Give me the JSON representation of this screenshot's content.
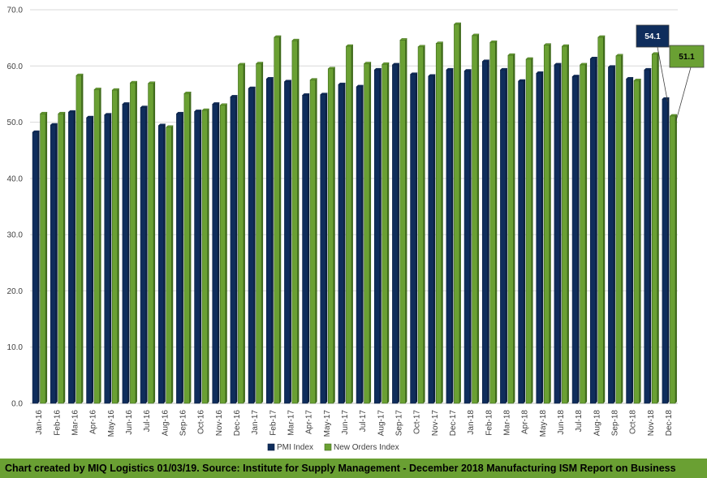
{
  "chart_data": {
    "type": "bar",
    "categories": [
      "Jan-16",
      "Feb-16",
      "Mar-16",
      "Apr-16",
      "May-16",
      "Jun-16",
      "Jul-16",
      "Aug-16",
      "Sep-16",
      "Oct-16",
      "Nov-16",
      "Dec-16",
      "Jan-17",
      "Feb-17",
      "Mar-17",
      "Apr-17",
      "May-17",
      "Jun-17",
      "Jul-17",
      "Aug-17",
      "Sep-17",
      "Oct-17",
      "Nov-17",
      "Dec-17",
      "Jan-18",
      "Feb-18",
      "Mar-18",
      "Apr-18",
      "May-18",
      "Jun-18",
      "Jul-18",
      "Aug-18",
      "Sep-18",
      "Oct-18",
      "Nov-18",
      "Dec-18"
    ],
    "series": [
      {
        "name": "PMI Index",
        "color": "#0f2d5c",
        "edge": "#0a1e40",
        "values": [
          48.2,
          49.5,
          51.8,
          50.8,
          51.3,
          53.2,
          52.6,
          49.4,
          51.5,
          51.9,
          53.2,
          54.5,
          56.0,
          57.7,
          57.2,
          54.8,
          54.9,
          56.7,
          56.3,
          59.3,
          60.2,
          58.5,
          58.2,
          59.3,
          59.1,
          60.8,
          59.3,
          57.3,
          58.7,
          60.2,
          58.1,
          61.3,
          59.8,
          57.7,
          59.3,
          54.1
        ]
      },
      {
        "name": "New Orders Index",
        "color": "#6aa033",
        "edge": "#3f6a1a",
        "values": [
          51.5,
          51.5,
          58.3,
          55.8,
          55.7,
          57.0,
          56.9,
          49.1,
          55.1,
          52.1,
          53.0,
          60.2,
          60.4,
          65.1,
          64.5,
          57.5,
          59.5,
          63.5,
          60.4,
          60.3,
          64.6,
          63.4,
          64.0,
          67.4,
          65.4,
          64.2,
          61.9,
          61.2,
          63.7,
          63.5,
          60.2,
          65.1,
          61.8,
          57.4,
          62.1,
          51.1
        ]
      }
    ],
    "ylim": [
      0,
      70
    ],
    "yticks": [
      "0.0",
      "10.0",
      "20.0",
      "30.0",
      "40.0",
      "50.0",
      "60.0",
      "70.0"
    ],
    "grid": true,
    "legend_position": "bottom",
    "callouts": [
      {
        "series": "PMI Index",
        "category": "Dec-18",
        "label": "54.1",
        "fill": "#0f2d5c",
        "text": "#ffffff"
      },
      {
        "series": "New Orders Index",
        "category": "Dec-18",
        "label": "51.1",
        "fill": "#6aa033",
        "text": "#000000"
      }
    ]
  },
  "footer": {
    "text": "Chart created by MIQ Logistics 01/03/19. Source: Institute for Supply Management - December 2018 Manufacturing ISM Report on Business"
  }
}
